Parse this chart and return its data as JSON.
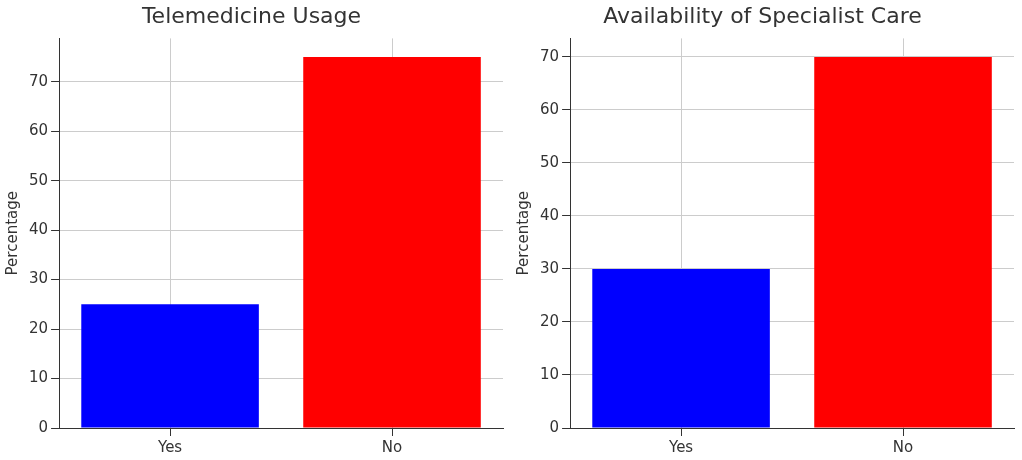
{
  "chart_data": [
    {
      "type": "bar",
      "title": "Telemedicine Usage",
      "ylabel": "Percentage",
      "categories": [
        "Yes",
        "No"
      ],
      "values": [
        25,
        75
      ],
      "colors": [
        "#0000ff",
        "#ff0000"
      ],
      "ylim": [
        0,
        78.75
      ],
      "yticks": [
        0,
        10,
        20,
        30,
        40,
        50,
        60,
        70
      ],
      "grid": true,
      "legend": false
    },
    {
      "type": "bar",
      "title": "Availability of Specialist Care",
      "ylabel": "Percentage",
      "categories": [
        "Yes",
        "No"
      ],
      "values": [
        30,
        70
      ],
      "colors": [
        "#0000ff",
        "#ff0000"
      ],
      "ylim": [
        0,
        73.5
      ],
      "yticks": [
        0,
        10,
        20,
        30,
        40,
        50,
        60,
        70
      ],
      "grid": true,
      "legend": false
    }
  ]
}
